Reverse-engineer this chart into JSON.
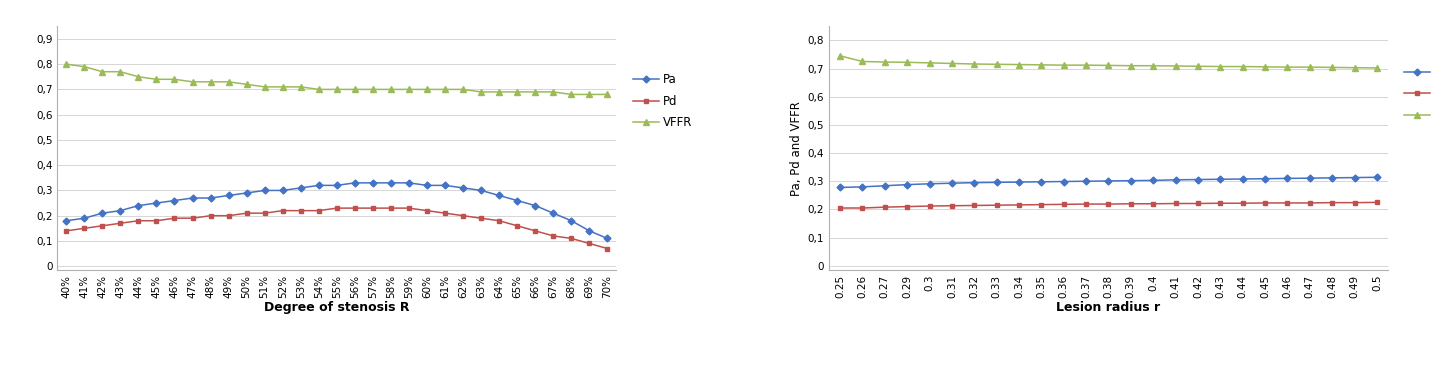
{
  "left": {
    "xlabel": "Degree of stenosis R",
    "ylabel": "",
    "yticks": [
      0,
      0.1,
      0.2,
      0.3,
      0.4,
      0.5,
      0.6,
      0.7,
      0.8,
      0.9
    ],
    "ytick_labels": [
      "0",
      "0,1",
      "0,2",
      "0,3",
      "0,4",
      "0,5",
      "0,6",
      "0,7",
      "0,8",
      "0,9"
    ],
    "ylim": [
      -0.015,
      0.95
    ],
    "xticks": [
      "40%",
      "41%",
      "42%",
      "43%",
      "44%",
      "45%",
      "46%",
      "47%",
      "48%",
      "49%",
      "50%",
      "51%",
      "52%",
      "53%",
      "54%",
      "55%",
      "56%",
      "57%",
      "58%",
      "59%",
      "60%",
      "61%",
      "62%",
      "63%",
      "64%",
      "65%",
      "66%",
      "67%",
      "68%",
      "69%",
      "70%"
    ],
    "Pa": [
      0.18,
      0.19,
      0.21,
      0.22,
      0.24,
      0.25,
      0.26,
      0.27,
      0.27,
      0.28,
      0.29,
      0.3,
      0.3,
      0.31,
      0.32,
      0.32,
      0.33,
      0.33,
      0.33,
      0.33,
      0.32,
      0.32,
      0.31,
      0.3,
      0.28,
      0.26,
      0.24,
      0.21,
      0.18,
      0.14,
      0.11
    ],
    "Pd": [
      0.14,
      0.15,
      0.16,
      0.17,
      0.18,
      0.18,
      0.19,
      0.19,
      0.2,
      0.2,
      0.21,
      0.21,
      0.22,
      0.22,
      0.22,
      0.23,
      0.23,
      0.23,
      0.23,
      0.23,
      0.22,
      0.21,
      0.2,
      0.19,
      0.18,
      0.16,
      0.14,
      0.12,
      0.11,
      0.09,
      0.07
    ],
    "VFFR": [
      0.8,
      0.79,
      0.77,
      0.77,
      0.75,
      0.74,
      0.74,
      0.73,
      0.73,
      0.73,
      0.72,
      0.71,
      0.71,
      0.71,
      0.7,
      0.7,
      0.7,
      0.7,
      0.7,
      0.7,
      0.7,
      0.7,
      0.7,
      0.69,
      0.69,
      0.69,
      0.69,
      0.69,
      0.68,
      0.68,
      0.68
    ],
    "Pa_color": "#4472c4",
    "Pd_color": "#c0504d",
    "VFFR_color": "#9bbb59"
  },
  "right": {
    "xlabel": "Lesion radius r",
    "ylabel": "Pa, Pd and VFFR",
    "yticks": [
      0,
      0.1,
      0.2,
      0.3,
      0.4,
      0.5,
      0.6,
      0.7,
      0.8
    ],
    "ytick_labels": [
      "0",
      "0,1",
      "0,2",
      "0,3",
      "0,4",
      "0,5",
      "0,6",
      "0,7",
      "0,8"
    ],
    "ylim": [
      -0.015,
      0.85
    ],
    "xticks": [
      "0.25",
      "0.26",
      "0.27",
      "0.29",
      "0.3",
      "0.31",
      "0.32",
      "0.33",
      "0.34",
      "0.35",
      "0.36",
      "0.37",
      "0.38",
      "0.39",
      "0.4",
      "0.41",
      "0.42",
      "0.43",
      "0.44",
      "0.45",
      "0.46",
      "0.47",
      "0.48",
      "0.49",
      "0.5"
    ],
    "Pa": [
      0.278,
      0.28,
      0.284,
      0.288,
      0.291,
      0.293,
      0.295,
      0.296,
      0.297,
      0.298,
      0.299,
      0.3,
      0.301,
      0.302,
      0.303,
      0.305,
      0.306,
      0.307,
      0.308,
      0.309,
      0.31,
      0.311,
      0.312,
      0.313,
      0.314
    ],
    "Pd": [
      0.205,
      0.205,
      0.208,
      0.21,
      0.212,
      0.213,
      0.214,
      0.215,
      0.216,
      0.217,
      0.218,
      0.219,
      0.219,
      0.22,
      0.22,
      0.221,
      0.221,
      0.222,
      0.222,
      0.223,
      0.223,
      0.223,
      0.224,
      0.224,
      0.225
    ],
    "VFFR": [
      0.745,
      0.725,
      0.723,
      0.722,
      0.72,
      0.718,
      0.716,
      0.715,
      0.714,
      0.713,
      0.712,
      0.712,
      0.711,
      0.71,
      0.71,
      0.709,
      0.708,
      0.707,
      0.707,
      0.706,
      0.705,
      0.705,
      0.704,
      0.703,
      0.702
    ],
    "Pa_color": "#4472c4",
    "Pd_color": "#c0504d",
    "VFFR_color": "#9bbb59"
  }
}
